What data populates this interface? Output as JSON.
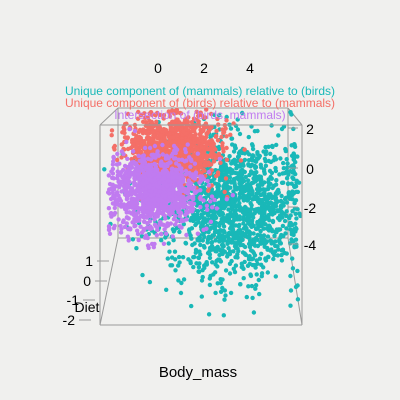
{
  "chart_data": {
    "type": "scatter",
    "projection": "3d",
    "title": "",
    "legend_position": "top-center",
    "xlabel": "Body_mass",
    "ylabel": "Diet",
    "zlabel": "",
    "x_ticks": [
      "0",
      "2",
      "4"
    ],
    "y_ticks": [
      "1",
      "0",
      "-1",
      "-2"
    ],
    "z_ticks": [
      "2",
      "0",
      "-2",
      "-4"
    ],
    "xlim": [
      -1,
      5.5
    ],
    "ylim": [
      -2.5,
      1.5
    ],
    "zlim": [
      -5,
      3
    ],
    "grid": false,
    "series": [
      {
        "name": "Unique component of (mammals) relative to (birds)",
        "color": "#19b8b8",
        "points": 1500,
        "center": {
          "body_mass": 3.3,
          "diet": -0.3,
          "z": -1.6
        },
        "spread": {
          "body_mass": 1.3,
          "diet": 0.8,
          "z": 1.7
        }
      },
      {
        "name": "Unique component of (birds) relative to (mammals)",
        "color": "#f46f67",
        "points": 1200,
        "center": {
          "body_mass": 1.2,
          "diet": 0.6,
          "z": 0.9
        },
        "spread": {
          "body_mass": 0.8,
          "diet": 0.5,
          "z": 0.9
        }
      },
      {
        "name": "Intersection of (birds, mammals)",
        "color": "#c07bf0",
        "points": 1100,
        "center": {
          "body_mass": 0.5,
          "diet": 0.2,
          "z": -1.1
        },
        "spread": {
          "body_mass": 0.8,
          "diet": 0.5,
          "z": 0.9
        }
      }
    ]
  }
}
